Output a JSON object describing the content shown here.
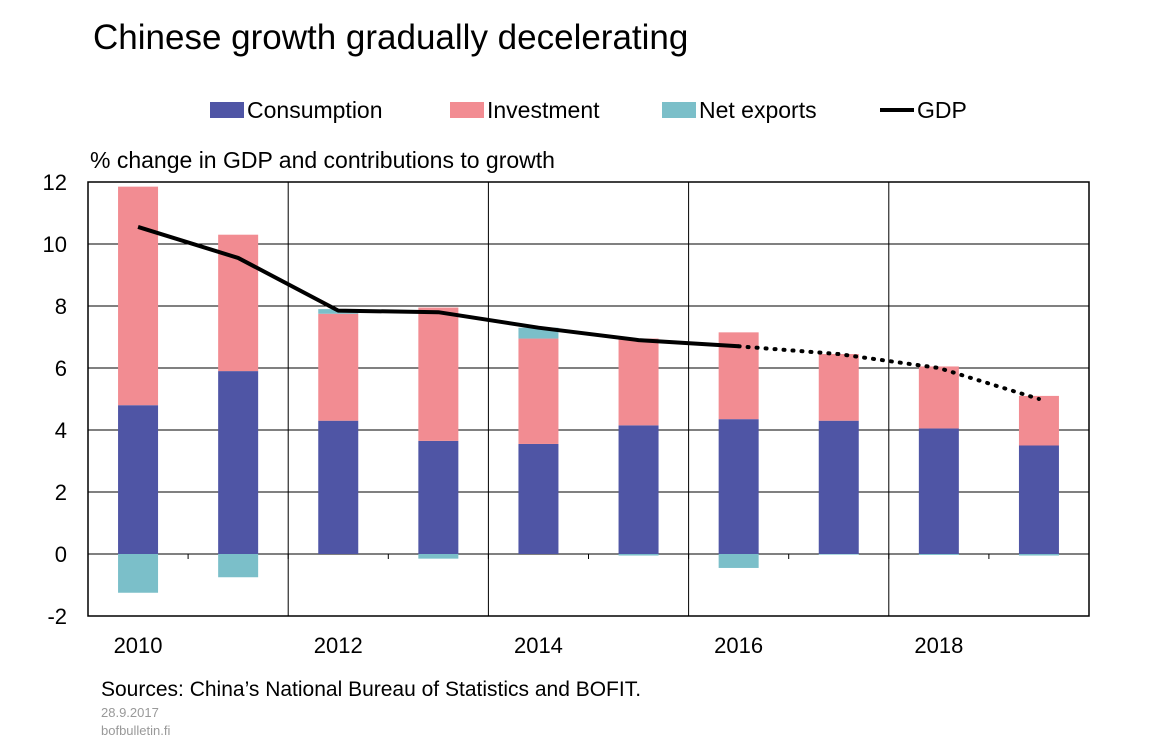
{
  "chart_data": {
    "type": "bar",
    "title": "Chinese growth gradually decelerating",
    "ylabel": "% change in GDP and contributions to growth",
    "xlabel": "",
    "ylim": [
      -2,
      12
    ],
    "yticks": [
      -2,
      0,
      2,
      4,
      6,
      8,
      10,
      12
    ],
    "stacked": true,
    "grid": true,
    "legend_position": "top",
    "categories": [
      "2010",
      "2011",
      "2012",
      "2013",
      "2014",
      "2015",
      "2016",
      "2017",
      "2018",
      "2019"
    ],
    "xtick_labels": [
      "2010",
      "2012",
      "2014",
      "2016",
      "2018"
    ],
    "series": [
      {
        "name": "Consumption",
        "kind": "bar",
        "color": "#4f55a5",
        "values": [
          4.8,
          5.9,
          4.3,
          3.65,
          3.55,
          4.15,
          4.35,
          4.3,
          4.05,
          3.5
        ]
      },
      {
        "name": "Investment",
        "kind": "bar",
        "color": "#f28c92",
        "values": [
          7.05,
          4.4,
          3.45,
          4.3,
          3.4,
          2.8,
          2.8,
          2.15,
          2.0,
          1.6
        ]
      },
      {
        "name": "Net exports",
        "kind": "bar",
        "color": "#7bbfc9",
        "values": [
          -1.25,
          -0.75,
          0.15,
          -0.15,
          0.35,
          -0.05,
          -0.45,
          -0.02,
          -0.03,
          -0.05
        ]
      },
      {
        "name": "GDP",
        "kind": "line",
        "color": "#000000",
        "values": [
          10.55,
          9.55,
          7.85,
          7.8,
          7.3,
          6.9,
          6.7,
          6.45,
          6.0,
          5.0
        ],
        "actual_through": "2016",
        "forecast_style": "dotted"
      }
    ]
  },
  "footer": {
    "sources": "Sources: China’s National Bureau of Statistics and BOFIT.",
    "date": "28.9.2017",
    "site": "bofbulletin.fi"
  }
}
